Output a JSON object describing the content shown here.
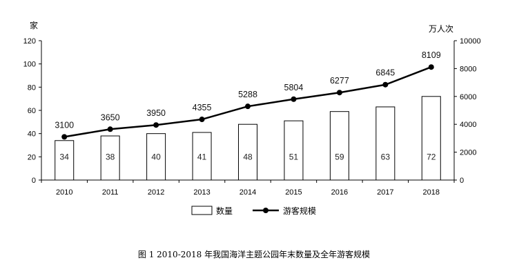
{
  "chart_data": {
    "type": "bar+line",
    "categories": [
      "2010",
      "2011",
      "2012",
      "2013",
      "2014",
      "2015",
      "2016",
      "2017",
      "2018"
    ],
    "series": [
      {
        "name": "数量",
        "type": "bar",
        "axis": "left",
        "values": [
          34,
          38,
          40,
          41,
          48,
          51,
          59,
          63,
          72
        ]
      },
      {
        "name": "游客规模",
        "type": "line",
        "axis": "right",
        "values": [
          3100,
          3650,
          3950,
          4355,
          5288,
          5804,
          6277,
          6845,
          8109
        ]
      }
    ],
    "y_left": {
      "unit": "家",
      "ylim": [
        0,
        120
      ],
      "ticks": [
        0,
        20,
        40,
        60,
        80,
        100,
        120
      ]
    },
    "y_right": {
      "unit": "万人次",
      "ylim": [
        0,
        10000
      ],
      "ticks": [
        0,
        2000,
        4000,
        6000,
        8000,
        10000
      ]
    },
    "grid": false,
    "legend": "bottom",
    "caption": "图 1  2010-2018 年我国海洋主题公园年末数量及全年游客规模",
    "colors": {
      "bar_fill": "#ffffff",
      "bar_stroke": "#000000",
      "line": "#000000"
    }
  }
}
